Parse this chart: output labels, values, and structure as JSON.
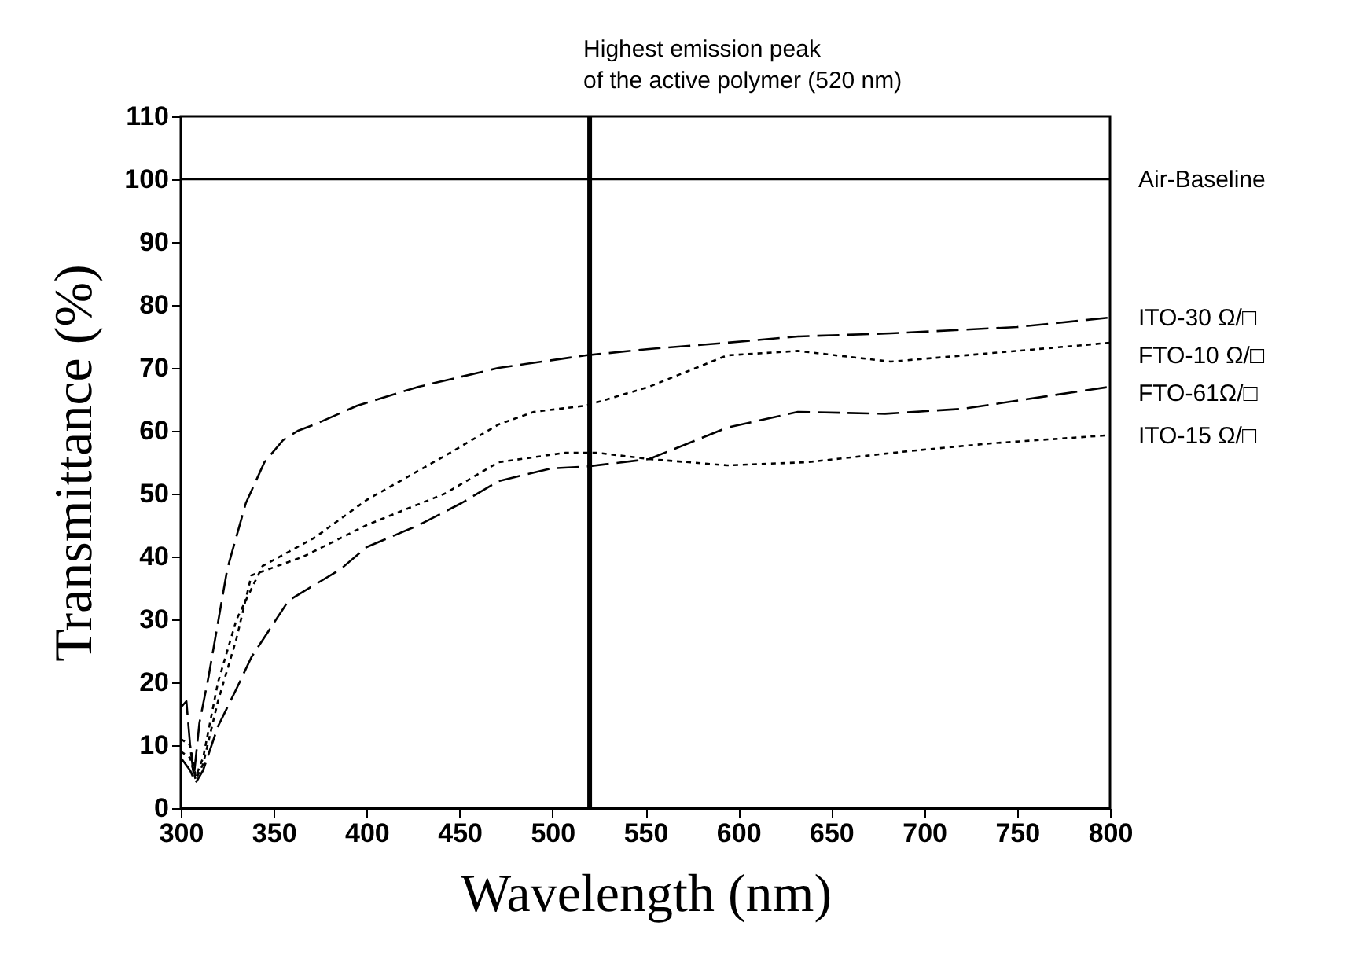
{
  "chart_data": {
    "type": "line",
    "xlabel": "Wavelength (nm)",
    "ylabel": "Transmittance (%)",
    "xlim": [
      300,
      800
    ],
    "ylim": [
      0,
      110
    ],
    "xticks": [
      300,
      350,
      400,
      450,
      500,
      550,
      600,
      650,
      700,
      750,
      800
    ],
    "yticks": [
      0,
      10,
      20,
      30,
      40,
      50,
      60,
      70,
      80,
      90,
      100,
      110
    ],
    "grid": false,
    "legend": false,
    "marker": "none",
    "ref_lines": [
      {
        "axis": "x",
        "value": 520,
        "label": "Highest emission peak\nof the active polymer (520 nm)",
        "color": "#000000"
      }
    ],
    "series": [
      {
        "name": "Air-Baseline",
        "color": "#000000",
        "line_style": "solid",
        "x": [
          300,
          800
        ],
        "values": [
          100,
          100
        ]
      },
      {
        "name": "ITO-30 Ω/□",
        "color": "#000000",
        "line_style": "dashed",
        "x": [
          300,
          303,
          305,
          307,
          310,
          315,
          325,
          335,
          345,
          355,
          363,
          372,
          395,
          428,
          471,
          518,
          552,
          594,
          632,
          682,
          750,
          800
        ],
        "values": [
          16,
          17,
          10,
          5,
          13.5,
          21,
          38,
          48.5,
          55,
          58.5,
          60,
          61,
          64,
          67,
          70,
          72,
          73,
          74,
          75,
          75.5,
          76.5,
          78
        ]
      },
      {
        "name": "FTO-10 Ω/□",
        "color": "#000000",
        "line_style": "dotted",
        "x": [
          300,
          305,
          308,
          312,
          320,
          330,
          344,
          372,
          400,
          442,
          471,
          490,
          518,
          552,
          594,
          632,
          682,
          750,
          800
        ],
        "values": [
          11,
          10,
          5,
          8,
          20,
          30,
          38.5,
          43,
          49,
          56,
          61,
          63,
          64,
          67,
          72,
          72.7,
          71,
          72.7,
          74
        ]
      },
      {
        "name": "FTO-61Ω/□",
        "color": "#000000",
        "line_style": "dashed",
        "x": [
          300,
          305,
          308,
          312,
          320,
          330,
          338,
          358,
          386,
          400,
          428,
          451,
          471,
          499,
          518,
          552,
          594,
          632,
          679,
          721,
          800
        ],
        "values": [
          8,
          6,
          4,
          6,
          13,
          19,
          24,
          33,
          38,
          41.5,
          45,
          48.5,
          52,
          54,
          54.3,
          55.5,
          60.5,
          63,
          62.7,
          63.5,
          67
        ]
      },
      {
        "name": "ITO-15 Ω/□",
        "color": "#000000",
        "line_style": "dotted",
        "x": [
          300,
          305,
          308,
          312,
          320,
          330,
          338,
          366,
          400,
          442,
          471,
          507,
          524,
          552,
          594,
          637,
          693,
          736,
          800
        ],
        "values": [
          9,
          8,
          4.5,
          7,
          17,
          27,
          37,
          40,
          45,
          50,
          55,
          56.5,
          56.5,
          55.5,
          54.5,
          55,
          56.8,
          58,
          59.3
        ]
      }
    ]
  }
}
